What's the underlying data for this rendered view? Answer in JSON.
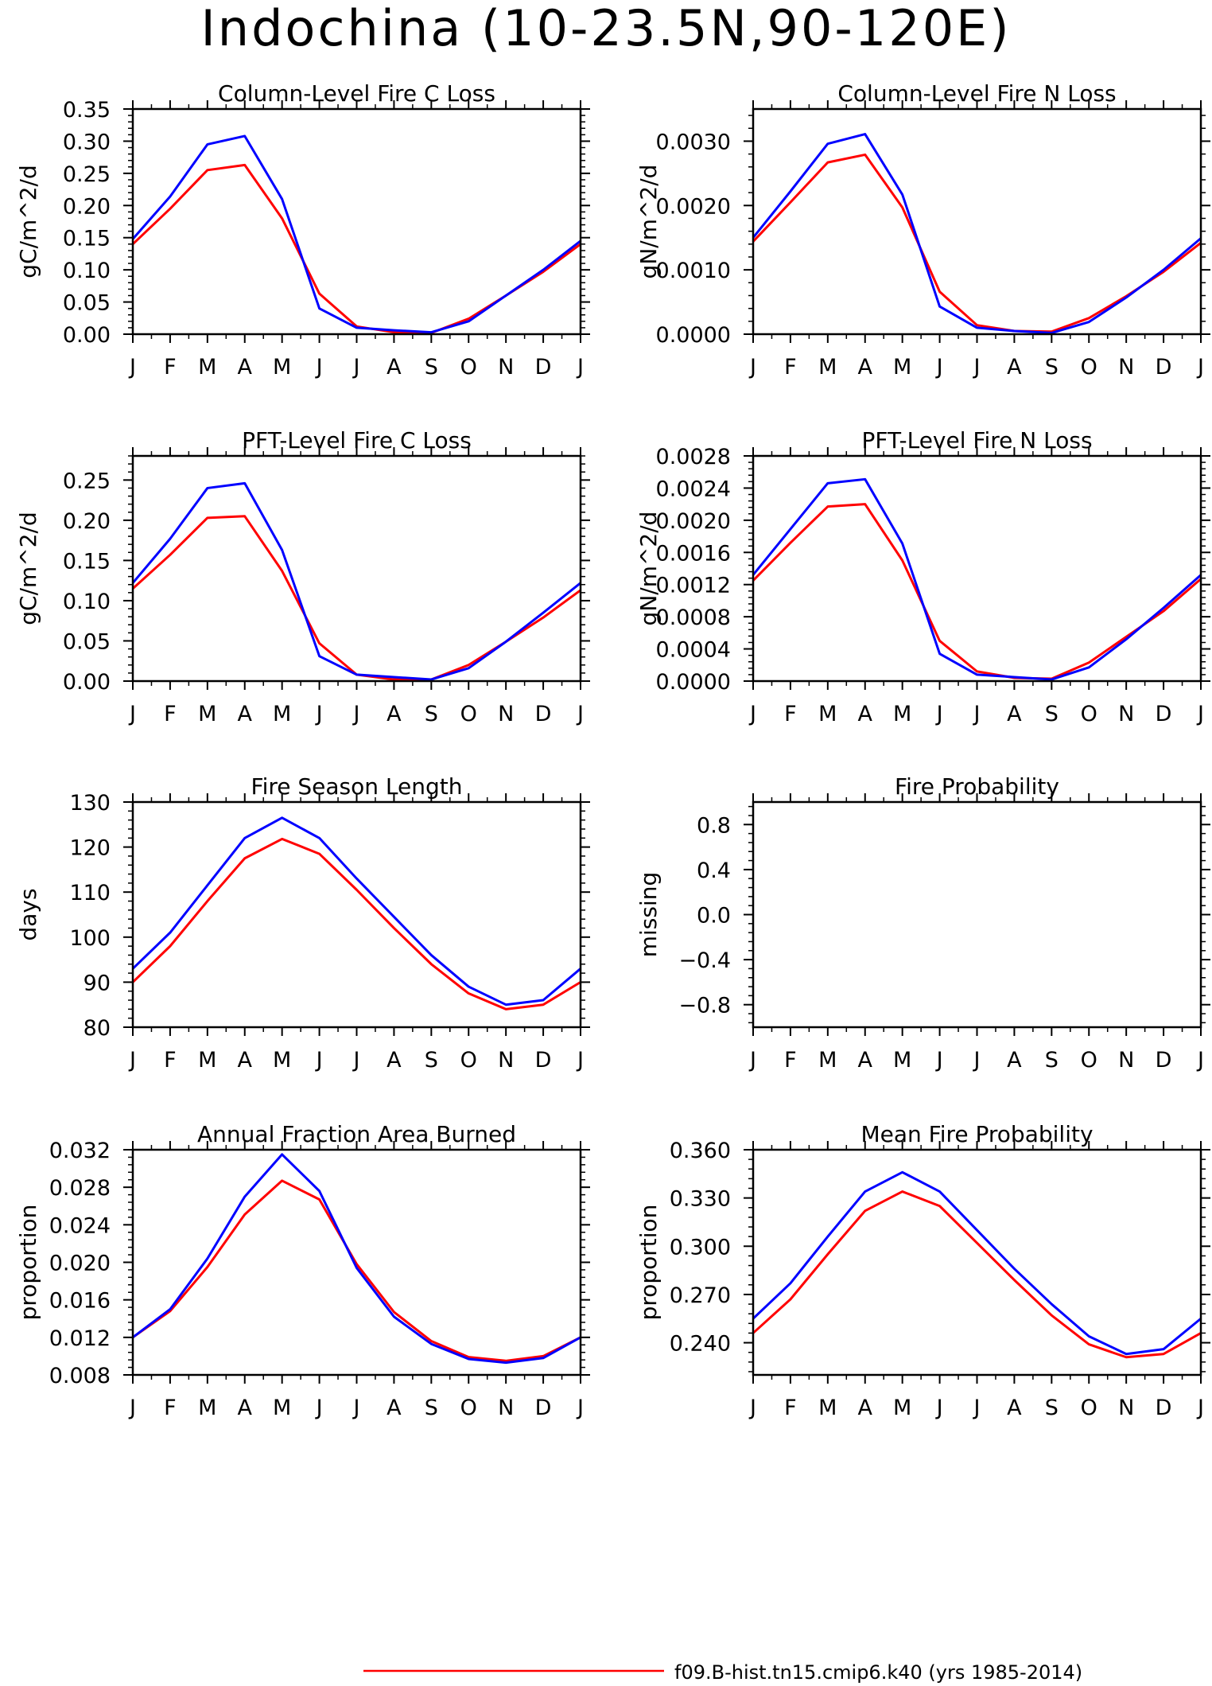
{
  "title": "Indochina (10-23.5N,90-120E)",
  "colors": {
    "series_1": "#ff0000",
    "series_2": "#0000ff",
    "axes": "#000000"
  },
  "legend": {
    "label": "f09.B-hist.tn15.cmip6.k40 (yrs 1985-2014)",
    "color": "#ff0000"
  },
  "chart_data": [
    {
      "type": "line",
      "title": "Column-Level Fire C Loss",
      "ylabel": "gC/m^2/d",
      "x": [
        "J",
        "F",
        "M",
        "A",
        "M",
        "J",
        "J",
        "A",
        "S",
        "O",
        "N",
        "D",
        "J"
      ],
      "ylim": [
        0,
        0.35
      ],
      "yticks": [
        "0.00",
        "0.05",
        "0.10",
        "0.15",
        "0.20",
        "0.25",
        "0.30",
        "0.35"
      ],
      "grid": false,
      "series": [
        {
          "color": "#ff0000",
          "values": [
            0.14,
            0.195,
            0.255,
            0.263,
            0.18,
            0.063,
            0.012,
            0.003,
            0.002,
            0.024,
            0.06,
            0.097,
            0.14
          ]
        },
        {
          "color": "#0000ff",
          "values": [
            0.148,
            0.214,
            0.295,
            0.308,
            0.21,
            0.04,
            0.01,
            0.006,
            0.003,
            0.02,
            0.06,
            0.1,
            0.145
          ]
        }
      ]
    },
    {
      "type": "line",
      "title": "Column-Level Fire N Loss",
      "ylabel": "gN/m^2/d",
      "x": [
        "J",
        "F",
        "M",
        "A",
        "M",
        "J",
        "J",
        "A",
        "S",
        "O",
        "N",
        "D",
        "J"
      ],
      "ylim": [
        0,
        0.0035
      ],
      "yticks": [
        "0.0000",
        "0.0010",
        "0.0020",
        "0.0030"
      ],
      "grid": false,
      "series": [
        {
          "color": "#ff0000",
          "values": [
            0.00144,
            0.00205,
            0.00267,
            0.00279,
            0.00197,
            0.00066,
            0.00014,
            5e-05,
            4e-05,
            0.00025,
            0.00059,
            0.00097,
            0.00142
          ]
        },
        {
          "color": "#0000ff",
          "values": [
            0.0015,
            0.00222,
            0.00296,
            0.00311,
            0.00217,
            0.00043,
            0.0001,
            5e-05,
            2e-05,
            0.00019,
            0.00057,
            0.001,
            0.00149
          ]
        }
      ]
    },
    {
      "type": "line",
      "title": "PFT-Level Fire C Loss",
      "ylabel": "gC/m^2/d",
      "x": [
        "J",
        "F",
        "M",
        "A",
        "M",
        "J",
        "J",
        "A",
        "S",
        "O",
        "N",
        "D",
        "J"
      ],
      "ylim": [
        0,
        0.28
      ],
      "yticks": [
        "0.00",
        "0.05",
        "0.10",
        "0.15",
        "0.20",
        "0.25"
      ],
      "grid": false,
      "series": [
        {
          "color": "#ff0000",
          "values": [
            0.115,
            0.157,
            0.203,
            0.205,
            0.137,
            0.047,
            0.008,
            0.002,
            0.002,
            0.02,
            0.049,
            0.079,
            0.113
          ]
        },
        {
          "color": "#0000ff",
          "values": [
            0.122,
            0.177,
            0.24,
            0.246,
            0.163,
            0.031,
            0.008,
            0.005,
            0.002,
            0.016,
            0.049,
            0.085,
            0.122
          ]
        }
      ]
    },
    {
      "type": "line",
      "title": "PFT-Level Fire N Loss",
      "ylabel": "gN/m^2/d",
      "x": [
        "J",
        "F",
        "M",
        "A",
        "M",
        "J",
        "J",
        "A",
        "S",
        "O",
        "N",
        "D",
        "J"
      ],
      "ylim": [
        0,
        0.0028
      ],
      "yticks": [
        "0.0000",
        "0.0004",
        "0.0008",
        "0.0012",
        "0.0016",
        "0.0020",
        "0.0024",
        "0.0028"
      ],
      "grid": false,
      "series": [
        {
          "color": "#ff0000",
          "values": [
            0.00125,
            0.00172,
            0.00217,
            0.0022,
            0.0015,
            0.0005,
            0.00012,
            4e-05,
            3e-05,
            0.00023,
            0.00055,
            0.00087,
            0.00127
          ]
        },
        {
          "color": "#0000ff",
          "values": [
            0.00132,
            0.00189,
            0.00246,
            0.00251,
            0.00171,
            0.00034,
            8e-05,
            5e-05,
            2e-05,
            0.00017,
            0.00052,
            0.00091,
            0.00132
          ]
        }
      ]
    },
    {
      "type": "line",
      "title": "Fire Season Length",
      "ylabel": "days",
      "x": [
        "J",
        "F",
        "M",
        "A",
        "M",
        "J",
        "J",
        "A",
        "S",
        "O",
        "N",
        "D",
        "J"
      ],
      "ylim": [
        80,
        130
      ],
      "yticks": [
        "80",
        "90",
        "100",
        "110",
        "120",
        "130"
      ],
      "grid": false,
      "series": [
        {
          "color": "#ff0000",
          "values": [
            90,
            98,
            108,
            117.5,
            121.8,
            118.5,
            110.5,
            102,
            94,
            87.5,
            84,
            85,
            90
          ]
        },
        {
          "color": "#0000ff",
          "values": [
            93,
            101,
            111.5,
            122,
            126.5,
            122,
            113,
            104.5,
            96,
            89,
            85,
            86,
            93
          ]
        }
      ]
    },
    {
      "type": "line",
      "title": "Fire Probability",
      "ylabel": "missing",
      "x": [
        "J",
        "F",
        "M",
        "A",
        "M",
        "J",
        "J",
        "A",
        "S",
        "O",
        "N",
        "D",
        "J"
      ],
      "ylim": [
        -1,
        1
      ],
      "yticks": [
        "-0.8",
        "-0.4",
        "0.0",
        "0.4",
        "0.8"
      ],
      "grid": false,
      "series": []
    },
    {
      "type": "line",
      "title": "Annual Fraction Area Burned",
      "ylabel": "proportion",
      "x": [
        "J",
        "F",
        "M",
        "A",
        "M",
        "J",
        "J",
        "A",
        "S",
        "O",
        "N",
        "D",
        "J"
      ],
      "ylim": [
        0.008,
        0.032
      ],
      "yticks": [
        "0.008",
        "0.012",
        "0.016",
        "0.020",
        "0.024",
        "0.028",
        "0.032"
      ],
      "grid": false,
      "series": [
        {
          "color": "#ff0000",
          "values": [
            0.012,
            0.0148,
            0.0195,
            0.0251,
            0.0287,
            0.0267,
            0.0198,
            0.0147,
            0.0116,
            0.0099,
            0.0095,
            0.01,
            0.012
          ]
        },
        {
          "color": "#0000ff",
          "values": [
            0.012,
            0.015,
            0.0204,
            0.027,
            0.0315,
            0.0276,
            0.0194,
            0.0142,
            0.0113,
            0.0097,
            0.0093,
            0.0098,
            0.012
          ]
        }
      ]
    },
    {
      "type": "line",
      "title": "Mean Fire Probability",
      "ylabel": "proportion",
      "x": [
        "J",
        "F",
        "M",
        "A",
        "M",
        "J",
        "J",
        "A",
        "S",
        "O",
        "N",
        "D",
        "J"
      ],
      "ylim": [
        0.22,
        0.36
      ],
      "yticks": [
        "0.240",
        "0.270",
        "0.300",
        "0.330",
        "0.360"
      ],
      "grid": false,
      "series": [
        {
          "color": "#ff0000",
          "values": [
            0.246,
            0.267,
            0.295,
            0.322,
            0.334,
            0.325,
            0.302,
            0.279,
            0.257,
            0.239,
            0.231,
            0.233,
            0.246
          ]
        },
        {
          "color": "#0000ff",
          "values": [
            0.255,
            0.277,
            0.306,
            0.334,
            0.346,
            0.334,
            0.31,
            0.286,
            0.264,
            0.244,
            0.233,
            0.236,
            0.255
          ]
        }
      ]
    }
  ]
}
